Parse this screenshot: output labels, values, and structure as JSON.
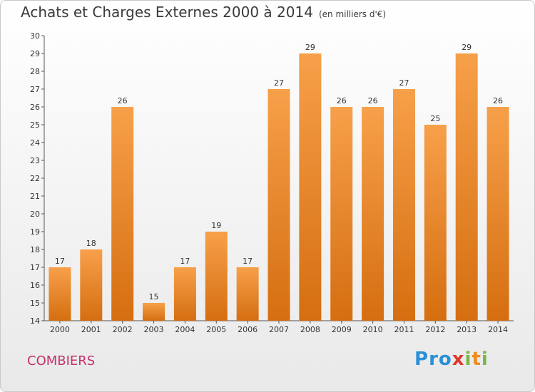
{
  "header": {
    "title": "Achats et Charges Externes 2000 à 2014",
    "subtitle": "(en milliers d'€)"
  },
  "footer": {
    "commune": "COMBIERS",
    "logo": {
      "letters": [
        "P",
        "r",
        "o",
        "x",
        "i",
        "t",
        "i"
      ],
      "colors": [
        "#2a8fd6",
        "#2a8fd6",
        "#2a8fd6",
        "#e0362a",
        "#7ab648",
        "#f08a1c",
        "#7ab648"
      ]
    }
  },
  "colors": {
    "bar_light": "#f7a04a",
    "bar_dark": "#d56e10"
  },
  "chart_data": {
    "type": "bar",
    "categories": [
      "2000",
      "2001",
      "2002",
      "2003",
      "2004",
      "2005",
      "2006",
      "2007",
      "2008",
      "2009",
      "2010",
      "2011",
      "2012",
      "2013",
      "2014"
    ],
    "values": [
      17,
      18,
      26,
      15,
      17,
      19,
      17,
      27,
      29,
      26,
      26,
      27,
      25,
      29,
      26
    ],
    "title": "Achats et Charges Externes 2000 à 2014",
    "ylim": [
      14,
      30
    ],
    "yticks": [
      14,
      15,
      16,
      17,
      18,
      19,
      20,
      21,
      22,
      23,
      24,
      25,
      26,
      27,
      28,
      29,
      30
    ],
    "grid": false,
    "legend": "none"
  }
}
